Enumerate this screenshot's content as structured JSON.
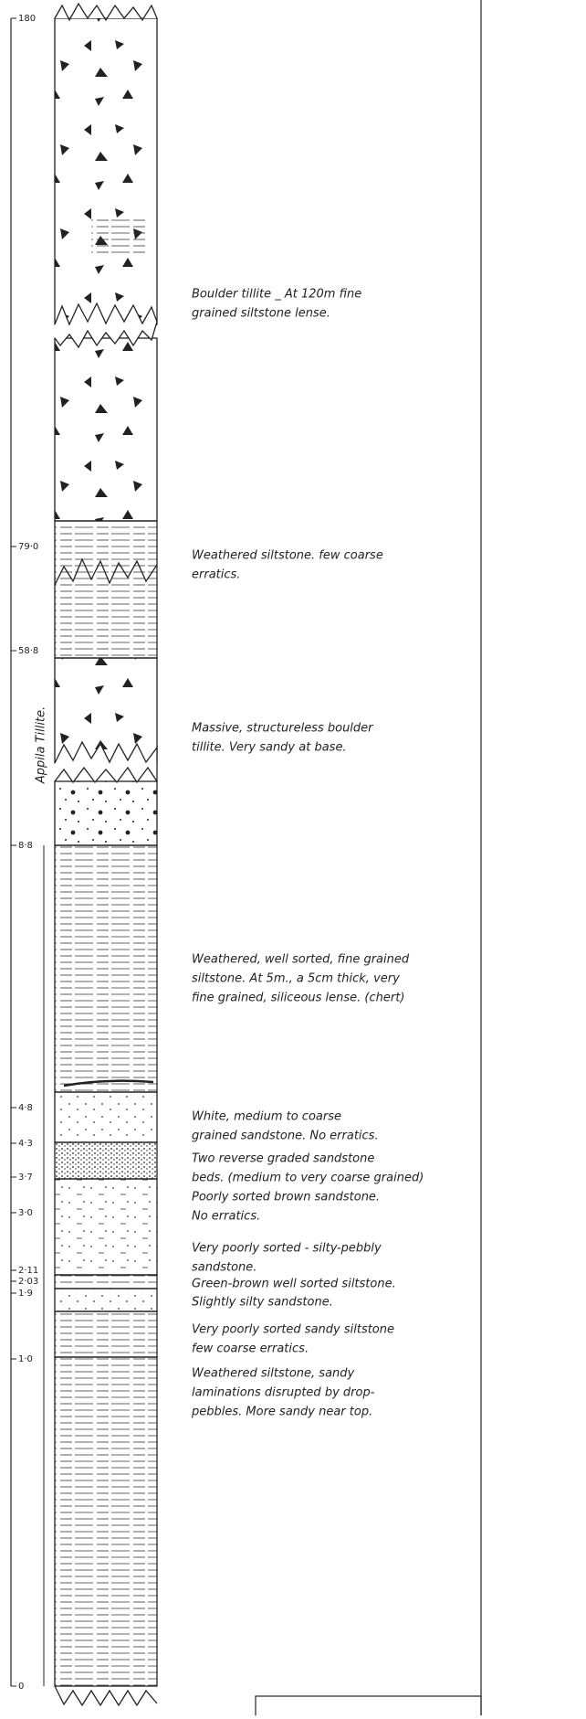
{
  "depths": [
    "180",
    "79·0",
    "58·8",
    "8·8",
    "4·8",
    "4·3",
    "3·7",
    "3·0",
    "2·11",
    "2·03",
    "1·9",
    "1·0",
    "0"
  ],
  "formation": "Appila Tillite.",
  "descriptions": [
    [
      "Boulder tillite _ At 120m fine",
      "grained siltstone lense."
    ],
    [
      "Weathered siltstone. few coarse",
      "erratics."
    ],
    [
      "Massive, structureless boulder",
      "tillite. Very sandy at base."
    ],
    [
      "Weathered, well sorted, fine grained",
      "siltstone. At 5m., a 5cm thick, very",
      "fine grained, siliceous lense. (chert)"
    ],
    [
      "White, medium to coarse",
      "grained sandstone. No erratics."
    ],
    [
      "Two reverse graded sandstone",
      "beds. (medium to very coarse grained)"
    ],
    [
      "Poorly sorted brown sandstone.",
      "No erratics."
    ],
    [
      "Very poorly sorted - silty-pebbly",
      "sandstone."
    ],
    [
      "Green-brown well sorted siltstone."
    ],
    [
      "Slightly silty sandstone."
    ],
    [
      "Very poorly sorted sandy siltstone",
      "few coarse erratics."
    ],
    [
      "Weathered siltstone, sandy",
      "laminations disrupted by drop-",
      "pebbles. More sandy near top."
    ]
  ]
}
